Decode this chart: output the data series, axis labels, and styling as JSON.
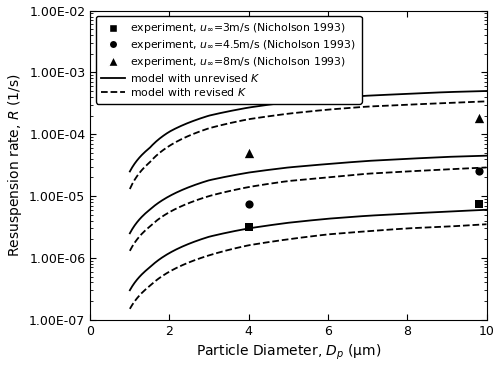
{
  "title": "",
  "xlabel": "Particle Diameter, $D_p$ (μm)",
  "ylabel": "Resuspension rate, $R$ (1/s)",
  "xlim": [
    0,
    10
  ],
  "ylim": [
    1e-07,
    0.01
  ],
  "xticks": [
    0,
    2,
    4,
    6,
    8,
    10
  ],
  "ytick_labels": [
    "1.00E-07",
    "1.00E-06",
    "1.00E-05",
    "1.00E-04",
    "1.00E-03",
    "1.00E-02"
  ],
  "ytick_vals": [
    1e-07,
    1e-06,
    1e-05,
    0.0001,
    0.001,
    0.01
  ],
  "legend_entries": [
    "experiment, $u_\\infty$=3m/s (Nicholson 1993)",
    "experiment, $u_\\infty$=4.5m/s (Nicholson 1993)",
    "experiment, $u_\\infty$=8m/s (Nicholson 1993)",
    "model with unrevised $K$",
    "model with revised $K$"
  ],
  "exp_data": {
    "u3": {
      "x": [
        4.0,
        9.8
      ],
      "y": [
        3.2e-06,
        7.5e-06
      ]
    },
    "u45": {
      "x": [
        4.0,
        9.8
      ],
      "y": [
        7.5e-06,
        2.5e-05
      ]
    },
    "u8": {
      "x": [
        4.0,
        9.8
      ],
      "y": [
        5e-05,
        0.00018
      ]
    }
  },
  "curves": {
    "u8_solid": {
      "x": [
        1,
        1.5,
        2,
        3,
        4,
        5,
        6,
        7,
        8,
        9,
        10
      ],
      "y": [
        2.5e-05,
        6e-05,
        0.00011,
        0.0002,
        0.00027,
        0.00033,
        0.00038,
        0.00042,
        0.00045,
        0.00048,
        0.0005
      ]
    },
    "u8_dash": {
      "x": [
        1,
        1.5,
        2,
        3,
        4,
        5,
        6,
        7,
        8,
        9,
        10
      ],
      "y": [
        1.3e-05,
        3.5e-05,
        6.5e-05,
        0.000125,
        0.000175,
        0.000215,
        0.00025,
        0.00028,
        0.0003,
        0.00032,
        0.00034
      ]
    },
    "u45_solid": {
      "x": [
        1,
        1.5,
        2,
        3,
        4,
        5,
        6,
        7,
        8,
        9,
        10
      ],
      "y": [
        2.5e-06,
        6e-06,
        1e-05,
        1.8e-05,
        2.4e-05,
        2.9e-05,
        3.3e-05,
        3.7e-05,
        4e-05,
        4.3e-05,
        4.5e-05
      ]
    },
    "u45_dash": {
      "x": [
        1,
        1.5,
        2,
        3,
        4,
        5,
        6,
        7,
        8,
        9,
        10
      ],
      "y": [
        1.3e-06,
        3.2e-06,
        5.5e-06,
        1e-05,
        1.4e-05,
        1.75e-05,
        2e-05,
        2.3e-05,
        2.5e-05,
        2.7e-05,
        2.9e-05
      ]
    },
    "u3_solid": {
      "x": [
        1,
        1.5,
        2,
        3,
        4,
        5,
        6,
        7,
        8,
        9,
        10
      ],
      "y": [
        3e-07,
        7e-07,
        1.2e-06,
        2.2e-06,
        3e-06,
        3.7e-06,
        4.3e-06,
        4.8e-06,
        5.2e-06,
        5.6e-06,
        6e-06
      ]
    },
    "u3_dash": {
      "x": [
        1,
        1.5,
        2,
        3,
        4,
        5,
        6,
        7,
        8,
        9,
        10
      ],
      "y": [
        1.5e-07,
        3.5e-07,
        6e-07,
        1.1e-06,
        1.6e-06,
        2e-06,
        2.4e-06,
        2.7e-06,
        3e-06,
        3.2e-06,
        3.5e-06
      ]
    }
  },
  "line_color": "#000000",
  "marker_color": "#000000",
  "bg_color": "#ffffff"
}
